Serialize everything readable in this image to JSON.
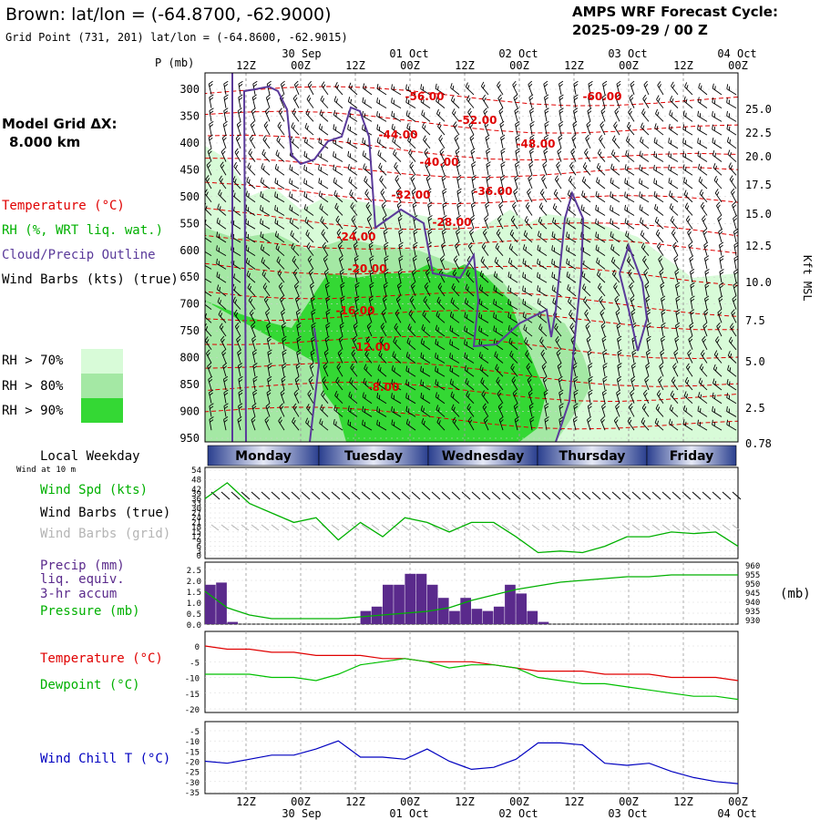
{
  "header": {
    "title": "Brown:  lat/lon = (-64.8700, -62.9000)",
    "subtitle": "Grid Point (731, 201) lat/lon = (-64.8600, -62.9015)",
    "cycle_line1": "AMPS WRF Forecast Cycle:",
    "cycle_line2": "2025-09-29 / 00  Z"
  },
  "left_labels": {
    "model_grid": "Model Grid ΔX:",
    "model_grid_value": "8.000 km",
    "temperature": "Temperature (°C)",
    "rh": "RH (%, WRT liq. wat.)",
    "cloud": "Cloud/Precip Outline",
    "wind_barbs": "Wind Barbs (kts) (true)",
    "rh70": "RH > 70%",
    "rh80": "RH > 80%",
    "rh90": "RH > 90%",
    "local_weekday": "Local Weekday",
    "wind_at_10m": "Wind at 10 m",
    "wind_spd": "Wind Spd (kts)",
    "wind_barbs_true": "Wind Barbs (true)",
    "wind_barbs_grid": "Wind Barbs (grid)",
    "precip1": "Precip (mm)",
    "precip2": "liq. equiv.",
    "precip3": "3-hr accum",
    "pressure": "Pressure (mb)",
    "pressure_unit": "(mb)",
    "temp2": "Temperature (°C)",
    "dewpoint": "Dewpoint (°C)",
    "windchill": "Wind Chill T (°C)",
    "p_axis": "P (mb)",
    "kft_axis": "Kft MSL"
  },
  "colors": {
    "rh70": "#d8fbd8",
    "rh80": "#a4e8a4",
    "rh90": "#34d834",
    "temperature": "#e00000",
    "dewpoint": "#00c000",
    "cloud_outline": "#5a3a9a",
    "precip_bar": "#5a2a8c",
    "pressure_line": "#00b000",
    "windchill": "#0000c0",
    "grid_barbs": "#b4b4b4"
  },
  "time_axis": {
    "top_dates": [
      "30 Sep",
      "01 Oct",
      "02 Oct",
      "03 Oct",
      "04 Oct"
    ],
    "hour_labels": [
      "12Z",
      "00Z",
      "12Z",
      "00Z",
      "12Z",
      "00Z",
      "12Z",
      "00Z",
      "12Z",
      "00Z"
    ],
    "bottom_dates": [
      "30 Sep",
      "01 Oct",
      "02 Oct",
      "03 Oct",
      "04 Oct"
    ]
  },
  "weekdays": [
    "Monday",
    "Tuesday",
    "Wednesday",
    "Thursday",
    "Friday"
  ],
  "chart_data": [
    {
      "type": "heatmap",
      "panel": "cross-section",
      "y_axis_pressure_mb": [
        300,
        350,
        400,
        450,
        500,
        550,
        600,
        650,
        700,
        750,
        800,
        850,
        900,
        950
      ],
      "y_axis_height_kft": [
        "25.0",
        "22.5",
        "20.0",
        "17.5",
        "15.0",
        "12.5",
        "10.0",
        "7.5",
        "5.0",
        "2.5",
        "0.78"
      ],
      "isotherm_labels": [
        "-56.00",
        "-60.00",
        "-52.00",
        "-44.00",
        "-48.00",
        "-40.00",
        "-36.00",
        "-32.00",
        "-28.00",
        "-24.00",
        "-20.00",
        "-16.00",
        "-12.00",
        "-8.00"
      ]
    },
    {
      "type": "line",
      "panel": "wind-speed",
      "y_ticks": [
        54,
        48,
        42,
        39,
        36,
        33,
        30,
        27,
        24,
        21,
        18,
        15,
        12,
        9,
        6,
        3,
        0
      ],
      "x_hours": [
        0,
        6,
        12,
        18,
        24,
        30,
        36,
        42,
        48,
        54,
        60,
        66,
        72,
        78,
        84,
        90,
        96,
        102,
        108,
        114,
        120,
        126,
        132,
        138,
        144
      ],
      "values": [
        36,
        46,
        33,
        27,
        21,
        24,
        10,
        21,
        12,
        24,
        21,
        15,
        21,
        21,
        12,
        2,
        3,
        2,
        6,
        12,
        12,
        15,
        14,
        15,
        6
      ]
    },
    {
      "type": "bar",
      "panel": "precip-pressure",
      "y_ticks_precip": [
        "2.5",
        "2.0",
        "1.5",
        "1.0",
        "0.5",
        "0.0"
      ],
      "y_ticks_pressure": [
        960,
        955,
        950,
        945,
        940,
        935,
        930
      ],
      "precip_3hr_mm": [
        1.8,
        1.9,
        0.1,
        0,
        0,
        0,
        0,
        0,
        0,
        0,
        0,
        0,
        0,
        0,
        0.6,
        0.8,
        1.8,
        1.8,
        2.3,
        2.3,
        1.8,
        1.2,
        0.6,
        1.2,
        0.7,
        0.6,
        0.8,
        1.8,
        1.4,
        0.6,
        0.1,
        0,
        0,
        0,
        0,
        0,
        0,
        0,
        0,
        0,
        0,
        0,
        0,
        0,
        0,
        0,
        0,
        0
      ],
      "pressure_x_hours": [
        0,
        6,
        12,
        18,
        24,
        30,
        36,
        42,
        48,
        54,
        60,
        66,
        72,
        78,
        84,
        90,
        96,
        102,
        108,
        114,
        120,
        126,
        132,
        138,
        144
      ],
      "pressure_mb": [
        946,
        937,
        933,
        931,
        931,
        931,
        931,
        932,
        933,
        934,
        935,
        937,
        941,
        944,
        947,
        949,
        951,
        952,
        953,
        954,
        954,
        955,
        955,
        955,
        955
      ]
    },
    {
      "type": "line",
      "panel": "temperature-dewpoint",
      "y_ticks": [
        0,
        -5,
        -10,
        -15,
        -20
      ],
      "x_hours": [
        0,
        6,
        12,
        18,
        24,
        30,
        36,
        42,
        48,
        54,
        60,
        66,
        72,
        78,
        84,
        90,
        96,
        102,
        108,
        114,
        120,
        126,
        132,
        138,
        144
      ],
      "series": [
        {
          "name": "Temperature (°C)",
          "values": [
            0,
            -1,
            -1,
            -2,
            -2,
            -3,
            -3,
            -3,
            -4,
            -4,
            -5,
            -5,
            -5,
            -6,
            -7,
            -8,
            -8,
            -8,
            -9,
            -9,
            -9,
            -10,
            -10,
            -10,
            -11
          ]
        },
        {
          "name": "Dewpoint (°C)",
          "values": [
            -9,
            -9,
            -9,
            -10,
            -10,
            -11,
            -9,
            -6,
            -5,
            -4,
            -5,
            -7,
            -6,
            -6,
            -7,
            -10,
            -11,
            -12,
            -12,
            -13,
            -14,
            -15,
            -16,
            -16,
            -17
          ]
        }
      ]
    },
    {
      "type": "line",
      "panel": "wind-chill",
      "y_ticks": [
        -5,
        -10,
        -15,
        -20,
        -25,
        -30,
        -35
      ],
      "x_hours": [
        0,
        6,
        12,
        18,
        24,
        30,
        36,
        42,
        48,
        54,
        60,
        66,
        72,
        78,
        84,
        90,
        96,
        102,
        108,
        114,
        120,
        126,
        132,
        138,
        144
      ],
      "values": [
        -20,
        -21,
        -19,
        -17,
        -17,
        -14,
        -10,
        -18,
        -18,
        -19,
        -14,
        -20,
        -24,
        -23,
        -19,
        -11,
        -11,
        -12,
        -21,
        -22,
        -21,
        -25,
        -28,
        -30,
        -31
      ]
    }
  ]
}
